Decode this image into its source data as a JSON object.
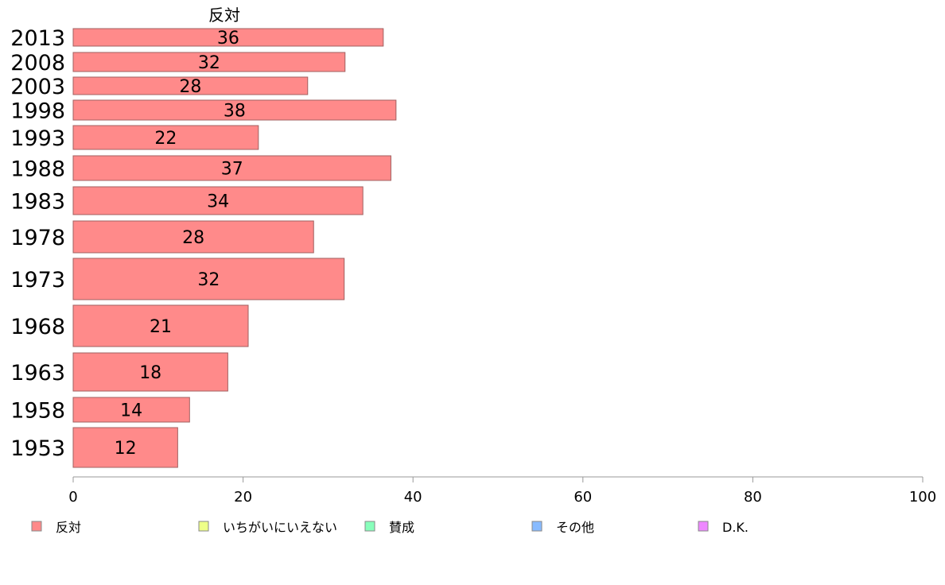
{
  "chart_data": {
    "type": "bar",
    "orientation": "horizontal",
    "series_title": "反対",
    "categories": [
      "2013",
      "2008",
      "2003",
      "1998",
      "1993",
      "1988",
      "1983",
      "1978",
      "1973",
      "1968",
      "1963",
      "1958",
      "1953"
    ],
    "values": [
      36,
      32,
      28,
      38,
      22,
      37,
      34,
      28,
      32,
      21,
      18,
      14,
      12
    ],
    "bar_lengths": [
      36.5,
      32,
      27.6,
      38,
      21.8,
      37.4,
      34.1,
      28.3,
      31.9,
      20.6,
      18.2,
      13.7,
      12.3
    ],
    "xlim": [
      0,
      100
    ],
    "xticks": [
      0,
      20,
      40,
      60,
      80,
      100
    ],
    "bar_color": "#ff8a8a",
    "bar_edge_color": "#a06060",
    "legend": [
      {
        "label": "反対",
        "color": "#ff8a8a"
      },
      {
        "label": "いちがいにいえない",
        "color": "#eeff88"
      },
      {
        "label": "賛成",
        "color": "#88ffbb"
      },
      {
        "label": "その他",
        "color": "#88bbff"
      },
      {
        "label": "D.K.",
        "color": "#ee88ff"
      }
    ],
    "legend_position": "bottom",
    "grid": false
  }
}
